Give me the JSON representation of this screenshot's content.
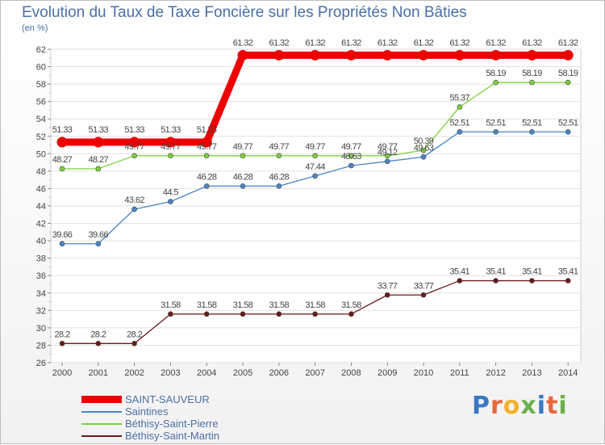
{
  "chart_data": {
    "type": "line",
    "title": "Evolution du Taux de Taxe Foncière sur les Propriétés Non Bâties",
    "ylabel": "(en %)",
    "xlabel": "",
    "x": [
      "2000",
      "2001",
      "2002",
      "2003",
      "2004",
      "2005",
      "2006",
      "2007",
      "2008",
      "2009",
      "2010",
      "2011",
      "2012",
      "2013",
      "2014"
    ],
    "ylim": [
      26,
      62
    ],
    "yticks": [
      26,
      28,
      30,
      32,
      34,
      36,
      38,
      40,
      42,
      44,
      46,
      48,
      50,
      52,
      54,
      56,
      58,
      60,
      62
    ],
    "series": [
      {
        "name": "SAINT-SAUVEUR",
        "color": "#ee0000",
        "values": [
          51.33,
          51.33,
          51.33,
          51.33,
          51.33,
          61.32,
          61.32,
          61.32,
          61.32,
          61.32,
          61.32,
          61.32,
          61.32,
          61.32,
          61.32
        ],
        "labels": [
          "51.33",
          "51.33",
          "51.33",
          "51.33",
          "51.33",
          "61.32",
          "61.32",
          "61.32",
          "61.32",
          "61.32",
          "61.32",
          "61.32",
          "61.32",
          "61.32",
          "61.32"
        ]
      },
      {
        "name": "Saintines",
        "color": "#4a86c5",
        "values": [
          39.66,
          39.66,
          43.62,
          44.5,
          46.28,
          46.28,
          46.28,
          47.44,
          48.63,
          49.12,
          49.63,
          52.51,
          52.51,
          52.51,
          52.51
        ],
        "labels": [
          "39.66",
          "39.66",
          "43.62",
          "44.5",
          "46.28",
          "46.28",
          "46.28",
          "47.44",
          "48.63",
          "49.12",
          "49.63",
          "52.51",
          "52.51",
          "52.51",
          "52.51"
        ]
      },
      {
        "name": "Béthisy-Saint-Pierre",
        "color": "#7bd23c",
        "values": [
          48.27,
          48.27,
          49.77,
          49.77,
          49.77,
          49.77,
          49.77,
          49.77,
          49.77,
          49.77,
          50.39,
          55.37,
          58.19,
          58.19,
          58.19
        ],
        "labels": [
          "48.27",
          "48.27",
          "49.77",
          "49.77",
          "49.77",
          "49.77",
          "49.77",
          "49.77",
          "49.77",
          "49.77",
          "50.39",
          "55.37",
          "58.19",
          "58.19",
          "58.19"
        ]
      },
      {
        "name": "Béthisy-Saint-Martin",
        "color": "#6b1a1a",
        "values": [
          28.2,
          28.2,
          28.2,
          31.58,
          31.58,
          31.58,
          31.58,
          31.58,
          31.58,
          33.77,
          33.77,
          35.41,
          35.41,
          35.41,
          35.41
        ],
        "labels": [
          "28.2",
          "28.2",
          "28.2",
          "31.58",
          "31.58",
          "31.58",
          "31.58",
          "31.58",
          "31.58",
          "33.77",
          "33.77",
          "35.41",
          "35.41",
          "35.41",
          "35.41"
        ]
      }
    ]
  },
  "logo_text": "Proxiti"
}
